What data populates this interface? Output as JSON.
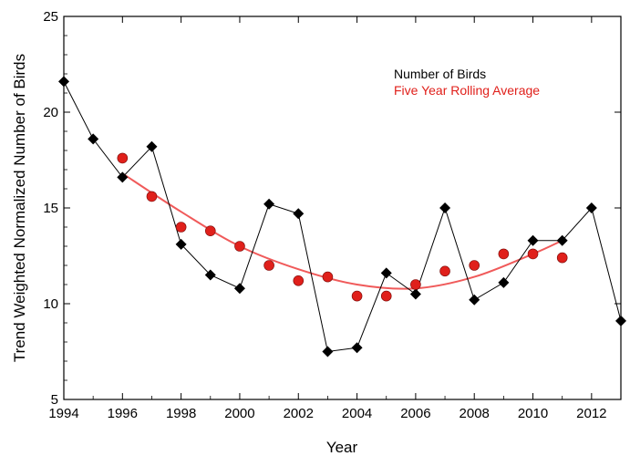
{
  "chart_data": {
    "type": "line",
    "xlabel": "Year",
    "ylabel": "Trend Weighted Normalized Number of Birds",
    "xlim": [
      1994,
      2013
    ],
    "ylim": [
      5,
      25
    ],
    "xticks": [
      1994,
      1996,
      1998,
      2000,
      2002,
      2004,
      2006,
      2008,
      2010,
      2012
    ],
    "yticks": [
      5,
      10,
      15,
      20,
      25
    ],
    "legend_position": "top-right",
    "grid": false,
    "series": [
      {
        "name": "Number of Birds",
        "color": "#000000",
        "marker": "diamond",
        "style": "line+markers",
        "x": [
          1994,
          1995,
          1996,
          1997,
          1998,
          1999,
          2000,
          2001,
          2002,
          2003,
          2004,
          2005,
          2006,
          2007,
          2008,
          2009,
          2010,
          2011,
          2012,
          2013
        ],
        "y": [
          21.6,
          18.6,
          16.6,
          18.2,
          13.1,
          11.5,
          10.8,
          15.2,
          14.7,
          7.5,
          7.7,
          11.6,
          10.5,
          15.0,
          10.2,
          11.1,
          13.3,
          13.3,
          15.0,
          9.1
        ]
      },
      {
        "name": "Five Year Rolling Average",
        "color": "#e0201b",
        "marker": "circle",
        "style": "markers",
        "x": [
          1996,
          1997,
          1998,
          1999,
          2000,
          2001,
          2002,
          2003,
          2004,
          2005,
          2006,
          2007,
          2008,
          2009,
          2010,
          2011
        ],
        "y": [
          17.6,
          15.6,
          14.0,
          13.8,
          13.0,
          12.0,
          11.2,
          11.4,
          10.4,
          10.4,
          11.0,
          11.7,
          12.0,
          12.6,
          12.6,
          12.4
        ]
      }
    ],
    "trend_curve": {
      "color": "#f05a5a",
      "x": [
        1996,
        1998,
        2000,
        2002,
        2004,
        2006,
        2008,
        2010,
        2011
      ],
      "y": [
        16.8,
        14.8,
        13.0,
        11.8,
        11.0,
        10.8,
        11.4,
        12.6,
        13.3
      ]
    }
  }
}
